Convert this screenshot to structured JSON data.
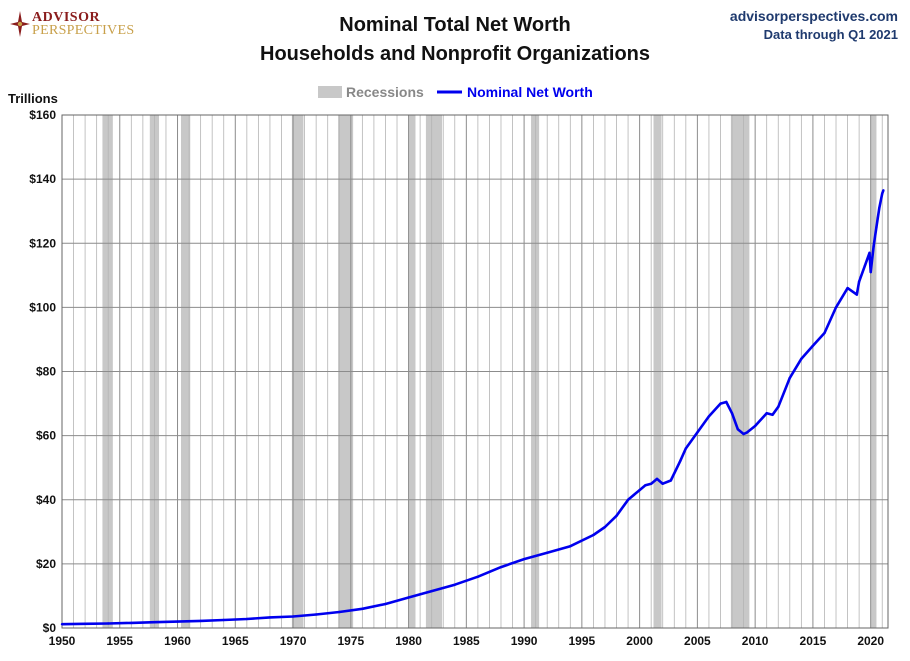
{
  "logo": {
    "line1": "ADVISOR",
    "line2": "PERSPECTIVES"
  },
  "header": {
    "title_line1": "Nominal Total Net Worth",
    "title_line2": "Households and Nonprofit Organizations",
    "site": "advisorperspectives.com",
    "data_through": "Data through Q1 2021"
  },
  "colors": {
    "line": "#0000ee",
    "recession": "#c8c8c8",
    "grid": "#a0a0a0",
    "text": "#111111",
    "brand_dark": "#8a1c1c",
    "brand_gold": "#c8a04a"
  },
  "chart_data": {
    "type": "line",
    "title": "Nominal Total Net Worth - Households and Nonprofit Organizations",
    "ylabel": "Trillions",
    "xlabel": "",
    "xlim": [
      1950,
      2021.5
    ],
    "ylim": [
      0,
      160
    ],
    "yticks": [
      0,
      20,
      40,
      60,
      80,
      100,
      120,
      140,
      160
    ],
    "ytick_labels": [
      "$0",
      "$20",
      "$40",
      "$60",
      "$80",
      "$100",
      "$120",
      "$140",
      "$160"
    ],
    "xticks": [
      1950,
      1955,
      1960,
      1965,
      1970,
      1975,
      1980,
      1985,
      1990,
      1995,
      2000,
      2005,
      2010,
      2015,
      2020
    ],
    "xtick_labels": [
      "1950",
      "1955",
      "1960",
      "1965",
      "1970",
      "1975",
      "1980",
      "1985",
      "1990",
      "1995",
      "2000",
      "2005",
      "2010",
      "2015",
      "2020"
    ],
    "grid": true,
    "legend": {
      "position": "top-center",
      "recessions_label": "Recessions",
      "series_label": "Nominal Net Worth"
    },
    "recessions": [
      [
        1953.5,
        1954.4
      ],
      [
        1957.6,
        1958.4
      ],
      [
        1960.3,
        1961.1
      ],
      [
        1969.9,
        1970.9
      ],
      [
        1973.9,
        1975.2
      ],
      [
        1980.0,
        1980.6
      ],
      [
        1981.5,
        1982.9
      ],
      [
        1990.6,
        1991.3
      ],
      [
        2001.2,
        2001.9
      ],
      [
        2007.9,
        2009.5
      ],
      [
        2020.0,
        2020.5
      ]
    ],
    "series": [
      {
        "name": "Nominal Net Worth",
        "x": [
          1950,
          1952,
          1954,
          1956,
          1958,
          1960,
          1962,
          1964,
          1966,
          1968,
          1970,
          1972,
          1974,
          1976,
          1978,
          1980,
          1982,
          1984,
          1986,
          1988,
          1990,
          1992,
          1994,
          1996,
          1997,
          1998,
          1999,
          2000,
          2000.5,
          2001,
          2001.5,
          2002,
          2002.7,
          2003.5,
          2004,
          2005,
          2006,
          2007,
          2007.5,
          2008,
          2008.5,
          2009,
          2009.3,
          2010,
          2011,
          2011.5,
          2012,
          2013,
          2014,
          2015,
          2016,
          2017,
          2018,
          2018.8,
          2019,
          2019.5,
          2019.9,
          2020,
          2020.25,
          2020.5,
          2020.75,
          2021,
          2021.1
        ],
        "values": [
          1.2,
          1.3,
          1.4,
          1.6,
          1.8,
          2.0,
          2.2,
          2.5,
          2.8,
          3.3,
          3.6,
          4.2,
          5.0,
          6.0,
          7.5,
          9.5,
          11.5,
          13.5,
          16.0,
          19.0,
          21.5,
          23.5,
          25.5,
          29.0,
          31.5,
          35.0,
          40.0,
          43.0,
          44.5,
          45.0,
          46.5,
          45.0,
          46.0,
          52.0,
          56.0,
          61.0,
          66.0,
          70.0,
          70.5,
          67.0,
          62.0,
          60.5,
          61.0,
          63.0,
          67.0,
          66.5,
          69.0,
          78.0,
          84.0,
          88.0,
          92.0,
          100.0,
          106.0,
          104.0,
          108.0,
          113.0,
          117.0,
          111.0,
          119.0,
          125.0,
          131.0,
          135.5,
          136.5
        ]
      }
    ]
  }
}
